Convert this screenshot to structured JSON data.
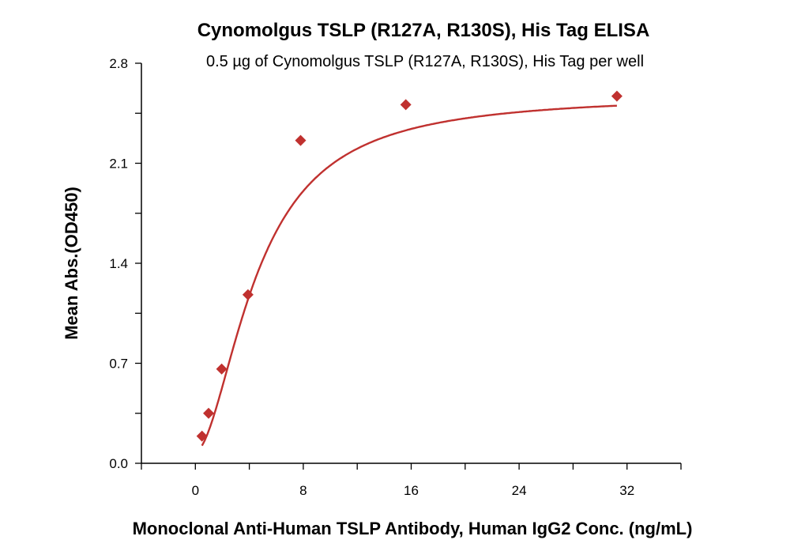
{
  "chart_data": {
    "type": "scatter",
    "title": "Cynomolgus TSLP (R127A, R130S), His Tag ELISA",
    "subtitle": "0.5 µg of Cynomolgus TSLP (R127A, R130S), His Tag per well",
    "xlabel": "Monoclonal Anti-Human TSLP Antibody, Human IgG2 Conc. (ng/mL)",
    "ylabel": "Mean Abs.(OD450)",
    "xlim": [
      -4,
      36
    ],
    "ylim": [
      0,
      2.8
    ],
    "xticks": [
      0,
      8,
      16,
      24,
      32
    ],
    "xtick_labels": [
      "0",
      "8",
      "16",
      "24",
      "32"
    ],
    "yticks": [
      0,
      0.7,
      1.4,
      2.1,
      2.8
    ],
    "ytick_labels": [
      "0.0",
      "0.7",
      "1.4",
      "2.1",
      "2.8"
    ],
    "grid": false,
    "fit_curve": true,
    "color": "#c0312f",
    "marker": "diamond",
    "x": [
      0.49,
      0.98,
      1.95,
      3.9,
      7.8,
      15.6,
      31.25
    ],
    "y": [
      0.19,
      0.35,
      0.66,
      1.18,
      2.26,
      2.51,
      2.57
    ]
  }
}
